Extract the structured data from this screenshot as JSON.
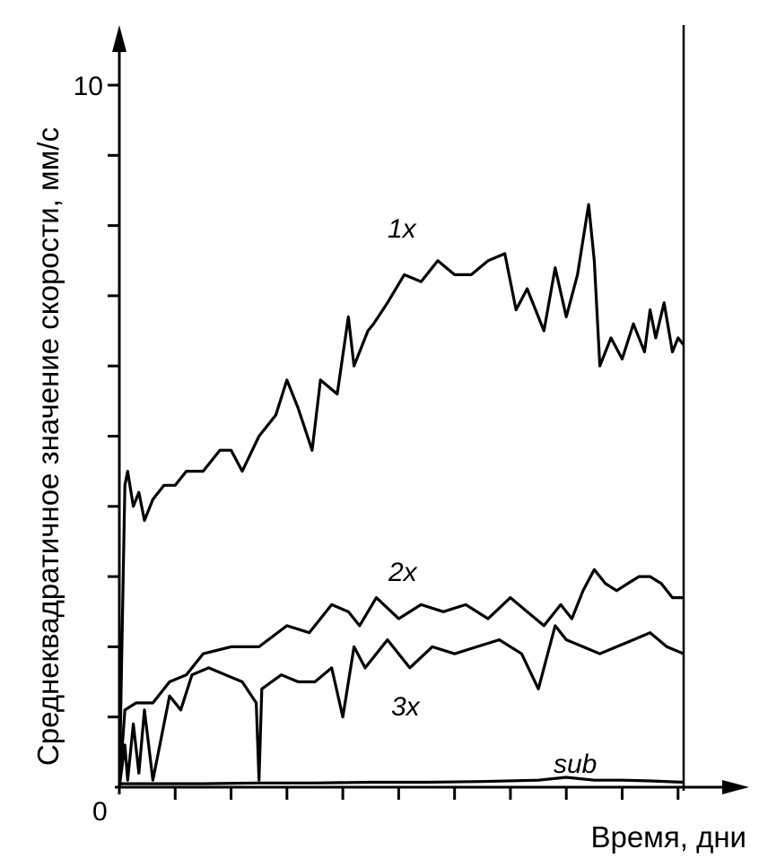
{
  "chart_data": {
    "type": "line",
    "xlabel": "Время, дни",
    "ylabel": "Среднеквадратичное значение скорости, мм/с",
    "origin_label": "0",
    "ytick_labels": [
      {
        "value": 10,
        "label": "10"
      }
    ],
    "xlim": [
      0,
      10.1
    ],
    "ylim": [
      0,
      10
    ],
    "y_minor_ticks": [
      1,
      2,
      3,
      4,
      5,
      6,
      7,
      8,
      9,
      10
    ],
    "x_ticks": [
      1,
      2,
      3,
      4,
      5,
      6,
      7,
      8,
      9,
      10
    ],
    "grid": false,
    "line_color": "#000000",
    "series": [
      {
        "name": "1x",
        "x": [
          0,
          0.1,
          0.15,
          0.25,
          0.35,
          0.45,
          0.6,
          0.8,
          1.0,
          1.2,
          1.5,
          1.8,
          2.0,
          2.2,
          2.5,
          2.8,
          3.0,
          3.2,
          3.45,
          3.6,
          3.9,
          4.1,
          4.2,
          4.45,
          4.55,
          4.8,
          5.1,
          5.4,
          5.7,
          6.0,
          6.3,
          6.6,
          6.9,
          7.1,
          7.3,
          7.6,
          7.8,
          8.0,
          8.2,
          8.4,
          8.5,
          8.6,
          8.8,
          9.0,
          9.2,
          9.4,
          9.5,
          9.6,
          9.75,
          9.9,
          10.0,
          10.1
        ],
        "y": [
          0,
          4.3,
          4.5,
          4.0,
          4.2,
          3.8,
          4.1,
          4.3,
          4.3,
          4.5,
          4.5,
          4.8,
          4.8,
          4.5,
          5.0,
          5.3,
          5.8,
          5.4,
          4.8,
          5.8,
          5.6,
          6.7,
          6.0,
          6.5,
          6.6,
          6.9,
          7.3,
          7.2,
          7.5,
          7.3,
          7.3,
          7.5,
          7.6,
          6.8,
          7.1,
          6.5,
          7.4,
          6.7,
          7.3,
          8.3,
          7.5,
          6.0,
          6.4,
          6.1,
          6.6,
          6.2,
          6.8,
          6.4,
          6.9,
          6.2,
          6.4,
          6.3
        ]
      },
      {
        "name": "2x",
        "x": [
          0,
          0.1,
          0.3,
          0.6,
          0.9,
          1.2,
          1.5,
          2.0,
          2.5,
          3.0,
          3.4,
          3.8,
          4.1,
          4.3,
          4.6,
          5.0,
          5.4,
          5.8,
          6.2,
          6.6,
          7.0,
          7.3,
          7.6,
          7.9,
          8.1,
          8.3,
          8.5,
          8.7,
          8.9,
          9.1,
          9.3,
          9.5,
          9.7,
          9.9,
          10.1
        ],
        "y": [
          0,
          1.1,
          1.2,
          1.2,
          1.5,
          1.6,
          1.9,
          2.0,
          2.0,
          2.3,
          2.2,
          2.6,
          2.5,
          2.3,
          2.7,
          2.4,
          2.6,
          2.5,
          2.6,
          2.4,
          2.7,
          2.5,
          2.3,
          2.6,
          2.4,
          2.8,
          3.1,
          2.9,
          2.8,
          2.9,
          3.0,
          3.0,
          2.9,
          2.7,
          2.7
        ]
      },
      {
        "name": "3x",
        "x": [
          0,
          0.1,
          0.15,
          0.25,
          0.35,
          0.45,
          0.6,
          0.75,
          0.9,
          1.1,
          1.3,
          1.6,
          1.9,
          2.2,
          2.45,
          2.5,
          2.55,
          2.9,
          3.2,
          3.5,
          3.8,
          4.0,
          4.2,
          4.4,
          4.8,
          5.2,
          5.6,
          6.0,
          6.4,
          6.8,
          7.2,
          7.5,
          7.8,
          8.0,
          8.3,
          8.6,
          8.9,
          9.2,
          9.5,
          9.8,
          10.1
        ],
        "y": [
          0,
          0.6,
          0.1,
          0.9,
          0.2,
          1.1,
          0.1,
          0.7,
          1.3,
          1.1,
          1.6,
          1.7,
          1.6,
          1.5,
          1.2,
          0.1,
          1.4,
          1.6,
          1.5,
          1.5,
          1.7,
          1.0,
          2.0,
          1.7,
          2.1,
          1.7,
          2.0,
          1.9,
          2.0,
          2.1,
          1.9,
          1.4,
          2.3,
          2.1,
          2.0,
          1.9,
          2.0,
          2.1,
          2.2,
          2.0,
          1.9
        ]
      },
      {
        "name": "sub",
        "x": [
          0,
          0.5,
          1.5,
          2.5,
          3.5,
          4.5,
          5.5,
          6.5,
          7.5,
          8.0,
          8.5,
          9.0,
          9.5,
          10.1
        ],
        "y": [
          0.05,
          0.05,
          0.05,
          0.06,
          0.06,
          0.07,
          0.07,
          0.08,
          0.1,
          0.14,
          0.1,
          0.1,
          0.09,
          0.07
        ]
      }
    ]
  }
}
